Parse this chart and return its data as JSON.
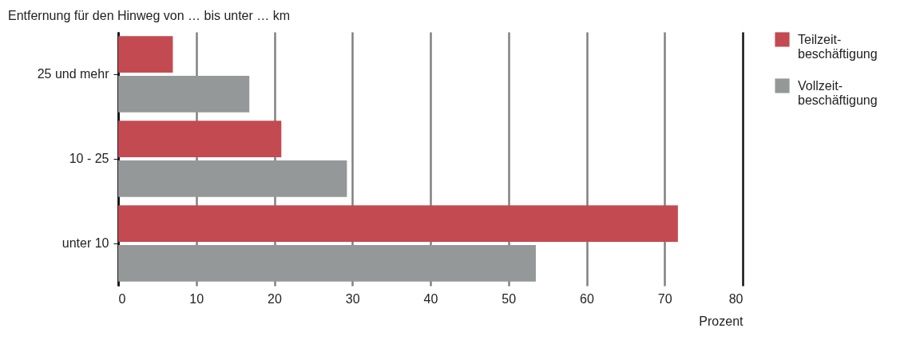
{
  "chart_data": {
    "type": "bar",
    "orientation": "horizontal",
    "title": "Entfernung für den Hinweg von … bis unter … km",
    "xlabel": "Prozent",
    "categories": [
      "25 und mehr",
      "10 - 25",
      "unter 10"
    ],
    "series": [
      {
        "name": "Teilzeit-\nbeschäftigung",
        "color": "#c44a52",
        "values": [
          7,
          20.9,
          71.7
        ]
      },
      {
        "name": "Vollzeit-\nbeschäftigung",
        "color": "#959898",
        "values": [
          16.8,
          29.3,
          53.5
        ]
      }
    ],
    "xlim": [
      0,
      80
    ],
    "xticks": [
      0,
      10,
      20,
      30,
      40,
      50,
      60,
      70,
      80
    ],
    "grid": "x",
    "legend": "right"
  }
}
